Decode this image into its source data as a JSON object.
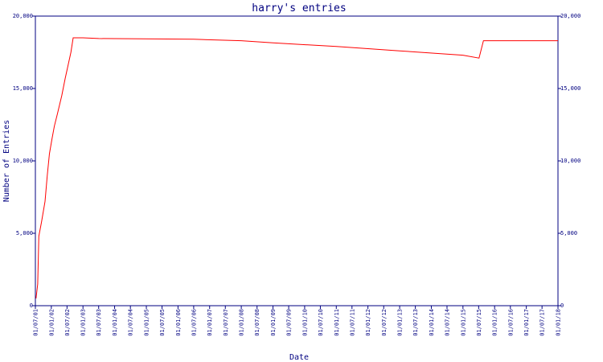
{
  "chart_data": {
    "type": "line",
    "title": "harry's entries",
    "xlabel": "Date",
    "ylabel": "Number of Entries",
    "x_ticks": [
      "01/07/01",
      "01/01/02",
      "01/07/02",
      "01/01/03",
      "01/07/03",
      "01/01/04",
      "01/07/04",
      "01/01/05",
      "01/07/05",
      "01/01/06",
      "01/07/06",
      "01/01/07",
      "01/07/07",
      "01/01/08",
      "01/07/08",
      "01/01/09",
      "01/07/09",
      "01/01/10",
      "01/07/10",
      "01/01/11",
      "01/07/11",
      "01/01/12",
      "01/07/12",
      "01/01/13",
      "01/07/13",
      "01/01/14",
      "01/07/14",
      "01/01/15",
      "01/07/15",
      "01/01/16",
      "01/07/16",
      "01/01/17",
      "01/07/17",
      "01/01/18"
    ],
    "y_ticks": [
      "0",
      "5,000",
      "10,000",
      "15,000",
      "20,000"
    ],
    "ylim": [
      0,
      20000
    ],
    "grid": false,
    "colors": {
      "line": "#ff0000",
      "axes": "#000080",
      "text": "#000080"
    },
    "series": [
      {
        "x": [
          "2001-07-08",
          "2001-07-28",
          "2001-08-10",
          "2001-09-10",
          "2001-10-20",
          "2001-11-15",
          "2001-12-10",
          "2002-01-08",
          "2002-02-05",
          "2002-03-10",
          "2002-05-01",
          "2002-06-10",
          "2002-08-15",
          "2002-09-10",
          "2003-01-01",
          "2003-07-01",
          "2006-07-01",
          "2008-01-01",
          "2009-01-01",
          "2011-01-01",
          "2013-01-01",
          "2015-01-01",
          "2015-07-05",
          "2015-08-25",
          "2016-01-01",
          "2018-01-01"
        ],
        "y": [
          500,
          1500,
          4800,
          5800,
          7200,
          9000,
          10500,
          11500,
          12400,
          13200,
          14500,
          15700,
          17500,
          18500,
          18500,
          18450,
          18400,
          18300,
          18150,
          17900,
          17600,
          17300,
          17100,
          18300,
          18300,
          18300
        ]
      }
    ]
  }
}
